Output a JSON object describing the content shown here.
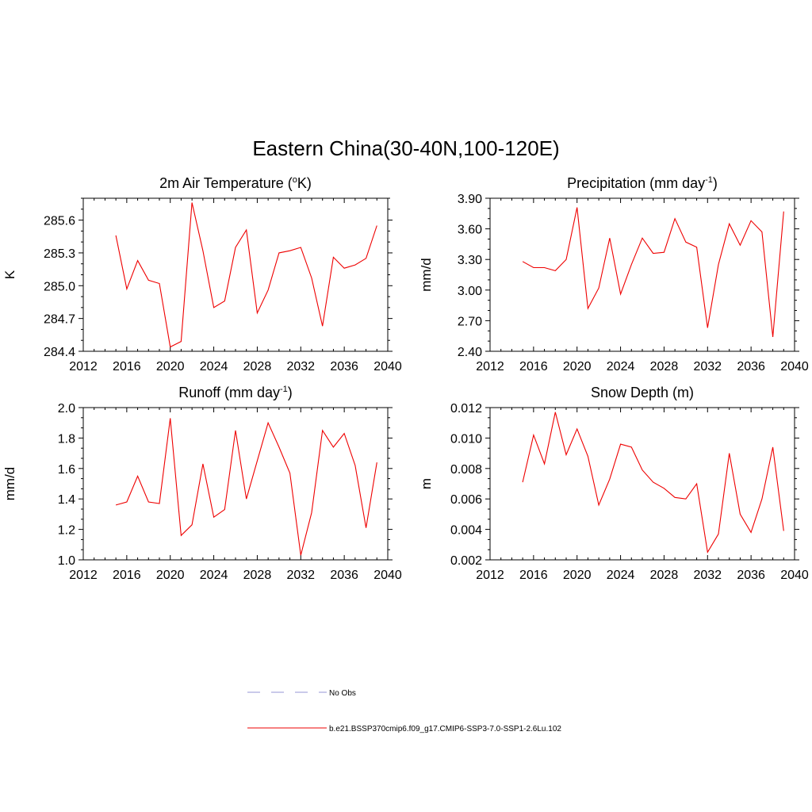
{
  "figure": {
    "title": "Eastern China(30-40N,100-120E)"
  },
  "legend": {
    "placement": "bottom-center",
    "items": [
      {
        "label": "No Obs",
        "style": "dashed",
        "color": "#aaaadd"
      },
      {
        "label": "b.e21.BSSP370cmip6.f09_g17.CMIP6-SSP3-7.0-SSP1-2.6Lu.102",
        "style": "solid",
        "color": "#ee0000"
      }
    ]
  },
  "chart_data": [
    {
      "type": "line",
      "title": "2m Air Temperature (°K)",
      "title_parts": {
        "pre": "2m Air Temperature (",
        "sup": "o",
        "post": "K)"
      },
      "ylabel": "K",
      "xlim": [
        2012,
        2040
      ],
      "ylim": [
        284.4,
        285.8
      ],
      "xticks": [
        2012,
        2016,
        2020,
        2024,
        2028,
        2032,
        2036,
        2040
      ],
      "yticks": [
        284.4,
        284.7,
        285.0,
        285.3,
        285.6
      ],
      "ytick_labels": [
        "284.4",
        "284.7",
        "285.0",
        "285.3",
        "285.6"
      ],
      "line_color": "#ee0000",
      "x": [
        2015,
        2016,
        2017,
        2018,
        2019,
        2020,
        2021,
        2022,
        2023,
        2024,
        2025,
        2026,
        2027,
        2028,
        2029,
        2030,
        2031,
        2032,
        2033,
        2034,
        2035,
        2036,
        2037,
        2038,
        2039
      ],
      "values": [
        285.46,
        284.97,
        285.23,
        285.05,
        285.02,
        284.44,
        284.49,
        285.76,
        285.32,
        284.8,
        284.86,
        285.35,
        285.51,
        284.75,
        284.96,
        285.3,
        285.32,
        285.35,
        285.07,
        284.63,
        285.26,
        285.16,
        285.19,
        285.25,
        285.55
      ]
    },
    {
      "type": "line",
      "title": "Precipitation (mm day-1)",
      "title_parts": {
        "pre": "Precipitation (mm day",
        "sup": "-1",
        "post": ")"
      },
      "ylabel": "mm/d",
      "xlim": [
        2012,
        2040
      ],
      "ylim": [
        2.4,
        3.9
      ],
      "xticks": [
        2012,
        2016,
        2020,
        2024,
        2028,
        2032,
        2036,
        2040
      ],
      "yticks": [
        2.4,
        2.7,
        3.0,
        3.3,
        3.6,
        3.9
      ],
      "ytick_labels": [
        "2.40",
        "2.70",
        "3.00",
        "3.30",
        "3.60",
        "3.90"
      ],
      "line_color": "#ee0000",
      "x": [
        2015,
        2016,
        2017,
        2018,
        2019,
        2020,
        2021,
        2022,
        2023,
        2024,
        2025,
        2026,
        2027,
        2028,
        2029,
        2030,
        2031,
        2032,
        2033,
        2034,
        2035,
        2036,
        2037,
        2038,
        2039
      ],
      "values": [
        3.28,
        3.22,
        3.22,
        3.19,
        3.3,
        3.81,
        2.82,
        3.02,
        3.51,
        2.96,
        3.25,
        3.51,
        3.36,
        3.37,
        3.7,
        3.47,
        3.42,
        2.63,
        3.25,
        3.65,
        3.44,
        3.68,
        3.57,
        2.54,
        3.77
      ]
    },
    {
      "type": "line",
      "title": "Runoff (mm day-1)",
      "title_parts": {
        "pre": "Runoff (mm day",
        "sup": "-1",
        "post": ")"
      },
      "ylabel": "mm/d",
      "xlim": [
        2012,
        2040
      ],
      "ylim": [
        1.0,
        2.0
      ],
      "xticks": [
        2012,
        2016,
        2020,
        2024,
        2028,
        2032,
        2036,
        2040
      ],
      "yticks": [
        1.0,
        1.2,
        1.4,
        1.6,
        1.8,
        2.0
      ],
      "ytick_labels": [
        "1.0",
        "1.2",
        "1.4",
        "1.6",
        "1.8",
        "2.0"
      ],
      "line_color": "#ee0000",
      "x": [
        2015,
        2016,
        2017,
        2018,
        2019,
        2020,
        2021,
        2022,
        2023,
        2024,
        2025,
        2026,
        2027,
        2028,
        2029,
        2030,
        2031,
        2032,
        2033,
        2034,
        2035,
        2036,
        2037,
        2038,
        2039
      ],
      "values": [
        1.36,
        1.38,
        1.55,
        1.38,
        1.37,
        1.93,
        1.16,
        1.23,
        1.63,
        1.28,
        1.33,
        1.85,
        1.4,
        1.65,
        1.9,
        1.74,
        1.57,
        1.03,
        1.31,
        1.85,
        1.74,
        1.83,
        1.62,
        1.21,
        1.64
      ]
    },
    {
      "type": "line",
      "title": "Snow Depth (m)",
      "title_parts": {
        "pre": "Snow Depth (m)",
        "sup": "",
        "post": ""
      },
      "ylabel": "m",
      "xlim": [
        2012,
        2040
      ],
      "ylim": [
        0.002,
        0.012
      ],
      "xticks": [
        2012,
        2016,
        2020,
        2024,
        2028,
        2032,
        2036,
        2040
      ],
      "yticks": [
        0.002,
        0.004,
        0.006,
        0.008,
        0.01,
        0.012
      ],
      "ytick_labels": [
        "0.002",
        "0.004",
        "0.006",
        "0.008",
        "0.010",
        "0.012"
      ],
      "line_color": "#ee0000",
      "x": [
        2015,
        2016,
        2017,
        2018,
        2019,
        2020,
        2021,
        2022,
        2023,
        2024,
        2025,
        2026,
        2027,
        2028,
        2029,
        2030,
        2031,
        2032,
        2033,
        2034,
        2035,
        2036,
        2037,
        2038,
        2039
      ],
      "values": [
        0.0071,
        0.0102,
        0.0083,
        0.0117,
        0.0089,
        0.0106,
        0.0088,
        0.0056,
        0.0073,
        0.0096,
        0.0094,
        0.0079,
        0.0071,
        0.0067,
        0.0061,
        0.006,
        0.007,
        0.0025,
        0.0037,
        0.009,
        0.005,
        0.0038,
        0.006,
        0.0094,
        0.0039
      ]
    }
  ]
}
